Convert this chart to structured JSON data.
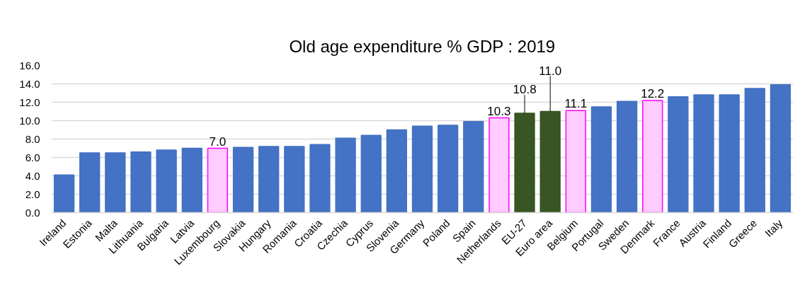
{
  "chart_data": {
    "type": "bar",
    "title": "Old age expenditure % GDP : 2019",
    "categories": [
      "Ireland",
      "Estonia",
      "Malta",
      "Lithuania",
      "Bulgaria",
      "Latvia",
      "Luxembourg",
      "Slovakia",
      "Hungary",
      "Romania",
      "Croatia",
      "Czechia",
      "Cyprus",
      "Slovenia",
      "Germany",
      "Poland",
      "Spain",
      "Netherlands",
      "EU-27",
      "Euro area",
      "Belgium",
      "Portugal",
      "Sweden",
      "Denmark",
      "France",
      "Austria",
      "Finland",
      "Greece",
      "Italy"
    ],
    "values": [
      4.1,
      6.5,
      6.5,
      6.6,
      6.8,
      7.0,
      7.0,
      7.1,
      7.2,
      7.2,
      7.4,
      8.1,
      8.4,
      9.0,
      9.4,
      9.5,
      9.9,
      10.3,
      10.8,
      11.0,
      11.1,
      11.5,
      12.1,
      12.2,
      12.6,
      12.8,
      12.8,
      13.5,
      13.9
    ],
    "colors": [
      "#4472c4",
      "#4472c4",
      "#4472c4",
      "#4472c4",
      "#4472c4",
      "#4472c4",
      "#ffccff",
      "#4472c4",
      "#4472c4",
      "#4472c4",
      "#4472c4",
      "#4472c4",
      "#4472c4",
      "#4472c4",
      "#4472c4",
      "#4472c4",
      "#4472c4",
      "#ffccff",
      "#375623",
      "#375623",
      "#ffccff",
      "#4472c4",
      "#4472c4",
      "#ffccff",
      "#4472c4",
      "#4472c4",
      "#4472c4",
      "#4472c4",
      "#4472c4"
    ],
    "value_labels": [
      null,
      null,
      null,
      null,
      null,
      null,
      "7.0",
      null,
      null,
      null,
      null,
      null,
      null,
      null,
      null,
      null,
      null,
      "10.3",
      "10.8",
      "11.0",
      "11.1",
      null,
      null,
      "12.2",
      null,
      null,
      null,
      null,
      null
    ],
    "ylim": [
      0,
      16
    ],
    "yticks": [
      {
        "value": 0,
        "label": "0.0"
      },
      {
        "value": 2,
        "label": "2.0"
      },
      {
        "value": 4,
        "label": "4.0"
      },
      {
        "value": 6,
        "label": "6.0"
      },
      {
        "value": 8,
        "label": "8.0"
      },
      {
        "value": 10,
        "label": "10.0"
      },
      {
        "value": 12,
        "label": "12.0"
      },
      {
        "value": 14,
        "label": "14.0"
      },
      {
        "value": 16,
        "label": "16.0"
      }
    ],
    "grid": "y"
  }
}
